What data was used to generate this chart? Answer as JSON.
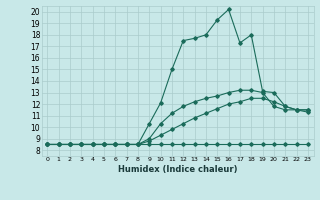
{
  "xlabel": "Humidex (Indice chaleur)",
  "xlim": [
    -0.5,
    23.5
  ],
  "ylim": [
    7.5,
    20.5
  ],
  "xticks": [
    0,
    1,
    2,
    3,
    4,
    5,
    6,
    7,
    8,
    9,
    10,
    11,
    12,
    13,
    14,
    15,
    16,
    17,
    18,
    19,
    20,
    21,
    22,
    23
  ],
  "yticks": [
    8,
    9,
    10,
    11,
    12,
    13,
    14,
    15,
    16,
    17,
    18,
    19,
    20
  ],
  "bg_color": "#c8e8e8",
  "line_color": "#1a6b5a",
  "grid_color": "#aacccc",
  "x": [
    0,
    1,
    2,
    3,
    4,
    5,
    6,
    7,
    8,
    9,
    10,
    11,
    12,
    13,
    14,
    15,
    16,
    17,
    18,
    19,
    20,
    21,
    22,
    23
  ],
  "curve1_y": [
    8.5,
    8.5,
    8.5,
    8.5,
    8.5,
    8.5,
    8.5,
    8.5,
    8.5,
    10.3,
    12.1,
    15.0,
    17.5,
    17.7,
    18.0,
    19.3,
    20.2,
    17.3,
    18.0,
    13.1,
    13.0,
    11.8,
    11.5,
    11.5
  ],
  "curve2_y": [
    8.5,
    8.5,
    8.5,
    8.5,
    8.5,
    8.5,
    8.5,
    8.5,
    8.5,
    9.0,
    10.3,
    11.2,
    11.8,
    12.2,
    12.5,
    12.7,
    13.0,
    13.2,
    13.2,
    13.0,
    11.8,
    11.5,
    11.5,
    11.5
  ],
  "curve3_y": [
    8.5,
    8.5,
    8.5,
    8.5,
    8.5,
    8.5,
    8.5,
    8.5,
    8.5,
    8.8,
    9.3,
    9.8,
    10.3,
    10.8,
    11.2,
    11.6,
    12.0,
    12.2,
    12.5,
    12.5,
    12.2,
    11.8,
    11.5,
    11.3
  ],
  "curve4_y": [
    8.5,
    8.5,
    8.5,
    8.5,
    8.5,
    8.5,
    8.5,
    8.5,
    8.5,
    8.5,
    8.5,
    8.5,
    8.5,
    8.5,
    8.5,
    8.5,
    8.5,
    8.5,
    8.5,
    8.5,
    8.5,
    8.5,
    8.5,
    8.5
  ]
}
